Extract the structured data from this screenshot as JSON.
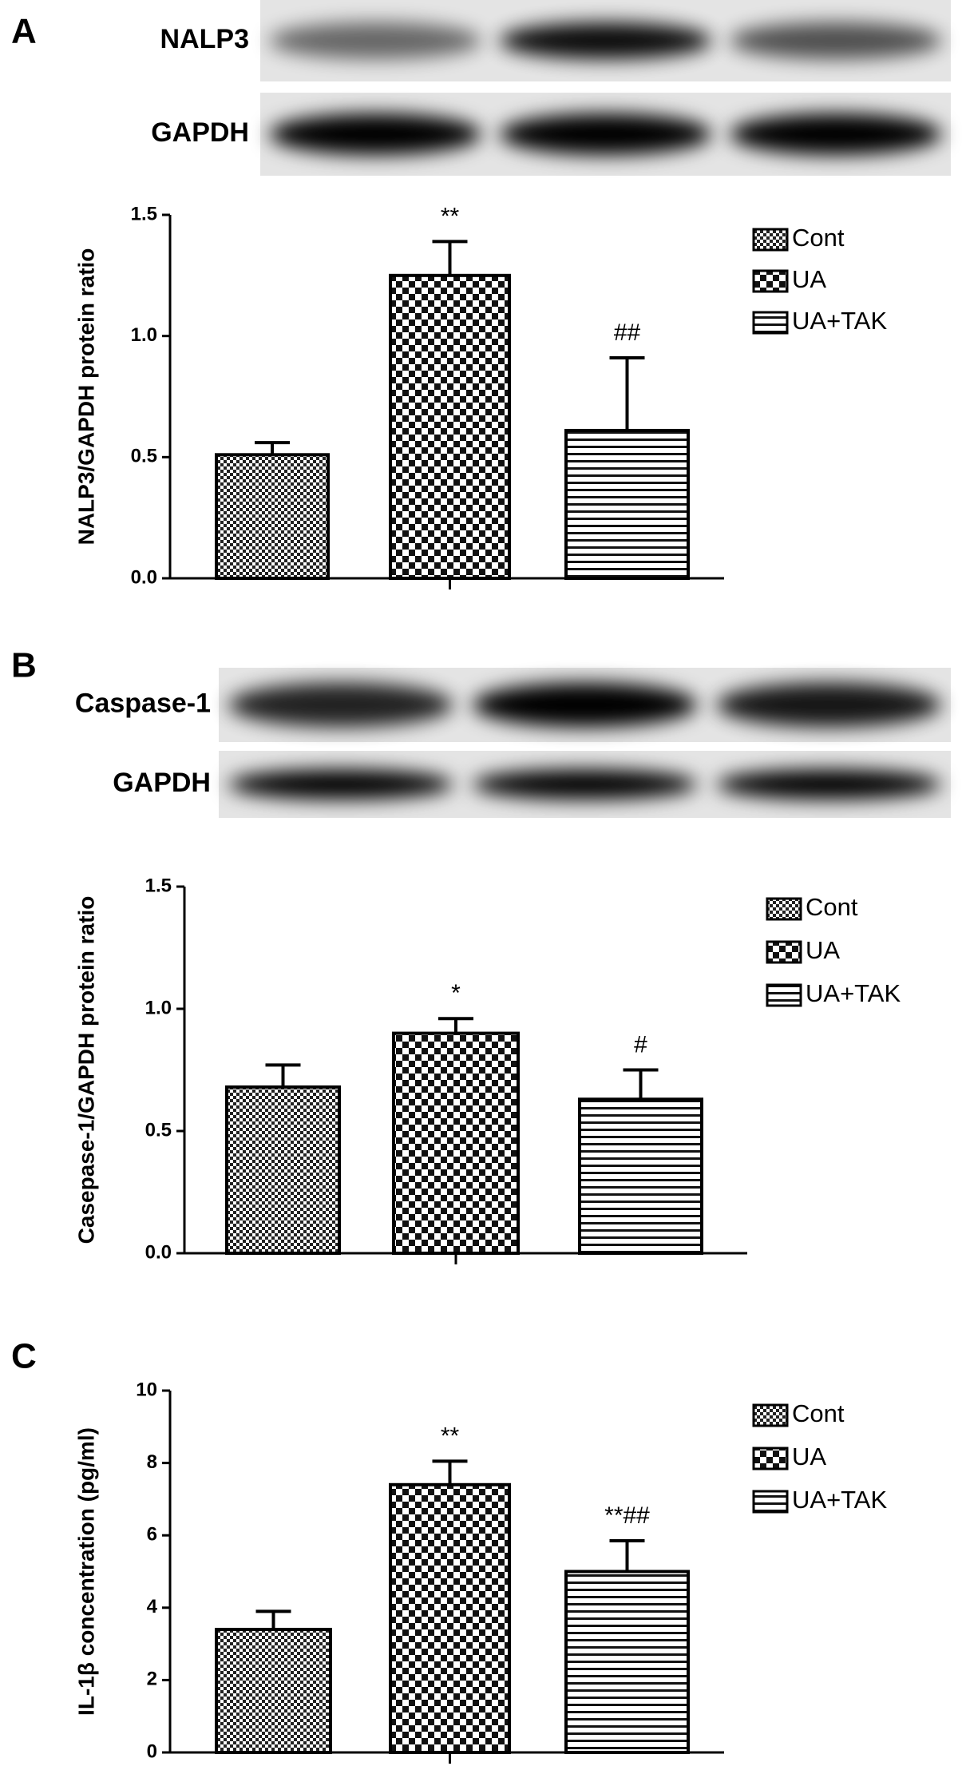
{
  "chart_data": [
    {
      "type": "bar",
      "panel": "A",
      "blot_labels": [
        "NALP3",
        "GAPDH"
      ],
      "y_label": "NALP3/GAPDH protein ratio",
      "ylim": [
        0,
        1.5
      ],
      "yticks": [
        {
          "value": 0,
          "label": "0.0"
        },
        0.5,
        {
          "value": 1,
          "label": "1.0"
        },
        1.5
      ],
      "series": [
        {
          "name": "Cont",
          "pattern": "fine-check",
          "values": [
            0.51
          ],
          "errors": [
            0.05
          ]
        },
        {
          "name": "UA",
          "pattern": "check",
          "values": [
            1.25
          ],
          "errors": [
            0.14
          ],
          "annotation": "**"
        },
        {
          "name": "UA+TAK",
          "pattern": "horizontal-lines",
          "values": [
            0.61
          ],
          "errors": [
            0.3
          ],
          "annotation": "##"
        }
      ]
    },
    {
      "type": "bar",
      "panel": "B",
      "blot_labels": [
        "Caspase-1",
        "GAPDH"
      ],
      "y_label": "Casepase-1/GAPDH protein ratio",
      "ylim": [
        0,
        1.5
      ],
      "yticks": [
        {
          "value": 0,
          "label": "0.0"
        },
        0.5,
        {
          "value": 1,
          "label": "1.0"
        },
        1.5
      ],
      "series": [
        {
          "name": "Cont",
          "pattern": "fine-check",
          "values": [
            0.68
          ],
          "errors": [
            0.09
          ]
        },
        {
          "name": "UA",
          "pattern": "check",
          "values": [
            0.9
          ],
          "errors": [
            0.06
          ],
          "annotation": "*"
        },
        {
          "name": "UA+TAK",
          "pattern": "horizontal-lines",
          "values": [
            0.63
          ],
          "errors": [
            0.12
          ],
          "annotation": "#"
        }
      ]
    },
    {
      "type": "bar",
      "panel": "C",
      "y_label": "IL-1β concentration (pg/ml)",
      "ylim": [
        0,
        10
      ],
      "yticks": [
        0,
        2,
        4,
        6,
        8,
        10
      ],
      "series": [
        {
          "name": "Cont",
          "pattern": "fine-check",
          "values": [
            3.4
          ],
          "errors": [
            0.5
          ]
        },
        {
          "name": "UA",
          "pattern": "check",
          "values": [
            7.4
          ],
          "errors": [
            0.65
          ],
          "annotation": "**"
        },
        {
          "name": "UA+TAK",
          "pattern": "horizontal-lines",
          "values": [
            5.0
          ],
          "errors": [
            0.85
          ],
          "annotation": "**##"
        }
      ]
    }
  ]
}
